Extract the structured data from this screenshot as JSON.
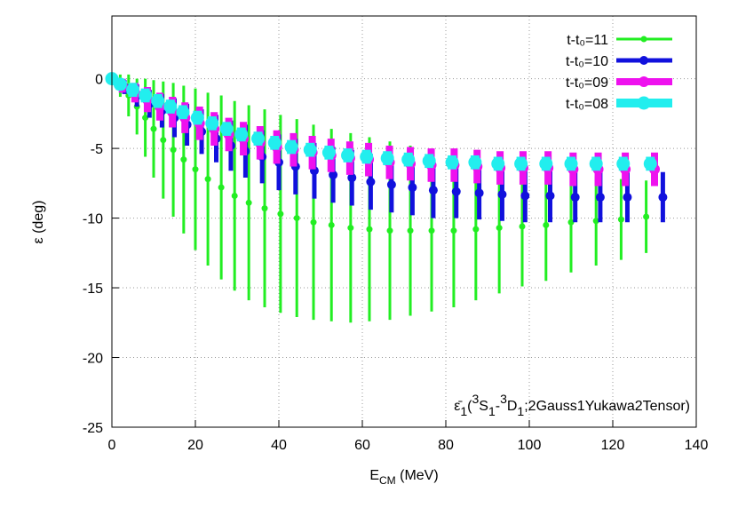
{
  "chart_data": {
    "type": "errorbar",
    "x_label": {
      "main": "E",
      "sub": "CM",
      "rest": " (MeV)"
    },
    "y_label": "ε (deg)",
    "annotation": [
      {
        "text": "ε̄",
        "shift": "none"
      },
      {
        "text": "1",
        "shift": "sub"
      },
      {
        "text": "(",
        "shift": "none"
      },
      {
        "text": "3",
        "shift": "sup"
      },
      {
        "text": "S",
        "shift": "none"
      },
      {
        "text": "1",
        "shift": "sub"
      },
      {
        "text": "-",
        "shift": "none"
      },
      {
        "text": "3",
        "shift": "sup"
      },
      {
        "text": "D",
        "shift": "none"
      },
      {
        "text": "1",
        "shift": "sub"
      },
      {
        "text": ";2Gauss1Yukawa2Tensor)",
        "shift": "none"
      }
    ],
    "xlim": [
      0,
      140
    ],
    "xticks": [
      0,
      20,
      40,
      60,
      80,
      100,
      120,
      140
    ],
    "ylim": [
      -25,
      4.5
    ],
    "yticks": [
      0,
      -5,
      -10,
      -15,
      -20,
      -25
    ],
    "grid": true,
    "legend": "top-right",
    "series": [
      {
        "name": "t-t₀=11",
        "color": "#22ee22",
        "line_width": 3,
        "marker_size": 3.5,
        "x": [
          0,
          2,
          4,
          6,
          8,
          10,
          12.3,
          14.7,
          17.2,
          20,
          23,
          26.2,
          29.4,
          32.8,
          36.6,
          40.4,
          44.3,
          48.3,
          52.6,
          57.2,
          61.7,
          66.6,
          71.5,
          76.6,
          81.9,
          87.2,
          92.8,
          98.3,
          104,
          110,
          116,
          122,
          128
        ],
        "values": [
          0,
          -0.5,
          -1.2,
          -2,
          -2.8,
          -3.6,
          -4.4,
          -5.1,
          -5.8,
          -6.5,
          -7.2,
          -7.8,
          -8.4,
          -8.9,
          -9.3,
          -9.7,
          -10,
          -10.3,
          -10.5,
          -10.7,
          -10.8,
          -10.9,
          -10.9,
          -10.9,
          -10.9,
          -10.8,
          -10.7,
          -10.6,
          -10.5,
          -10.3,
          -10.2,
          -10.1,
          -9.9
        ],
        "errors": [
          0,
          0.8,
          1.5,
          2,
          2.8,
          3.5,
          4.2,
          4.8,
          5.3,
          5.8,
          6.2,
          6.6,
          6.8,
          7,
          7.1,
          7.1,
          7.1,
          7,
          6.9,
          6.8,
          6.6,
          6.4,
          6.1,
          5.8,
          5.5,
          5.1,
          4.7,
          4.3,
          4,
          3.6,
          3.2,
          2.9,
          2.6
        ]
      },
      {
        "name": "t-t₀=10",
        "color": "#1111dd",
        "line_width": 5,
        "marker_size": 5,
        "x": [
          0,
          3,
          6,
          9,
          12,
          15,
          18,
          21.5,
          25,
          28.5,
          32,
          36,
          40,
          44,
          48.5,
          53,
          57.5,
          62,
          67,
          72,
          77,
          82.5,
          88,
          93.5,
          99,
          105,
          111,
          117,
          123.5,
          132
        ],
        "values": [
          0,
          -0.6,
          -1.2,
          -1.8,
          -2.3,
          -2.8,
          -3.3,
          -3.8,
          -4.3,
          -4.8,
          -5.2,
          -5.6,
          -6,
          -6.3,
          -6.6,
          -6.9,
          -7.1,
          -7.4,
          -7.6,
          -7.8,
          -8,
          -8.1,
          -8.2,
          -8.3,
          -8.4,
          -8.4,
          -8.5,
          -8.5,
          -8.5,
          -8.5
        ],
        "errors": [
          0,
          0.5,
          0.8,
          1,
          1.2,
          1.4,
          1.5,
          1.6,
          1.7,
          1.8,
          1.9,
          1.9,
          2,
          2,
          2,
          2,
          2,
          2,
          2,
          2,
          2,
          1.9,
          1.9,
          1.9,
          1.9,
          1.9,
          1.8,
          1.8,
          1.8,
          1.8
        ]
      },
      {
        "name": "t-t₀=09",
        "color": "#ee11ee",
        "line_width": 8,
        "marker_size": 6,
        "x": [
          0,
          2.5,
          5.5,
          8.5,
          11.5,
          14.5,
          17.5,
          21,
          24.5,
          28,
          31.5,
          35.5,
          39.5,
          43.5,
          48,
          52.5,
          57,
          61.5,
          66.5,
          71.5,
          76.5,
          82,
          87.5,
          93,
          98.5,
          104.5,
          110.5,
          116.5,
          123,
          130
        ],
        "values": [
          0,
          -0.5,
          -1,
          -1.5,
          -2,
          -2.4,
          -2.8,
          -3.2,
          -3.6,
          -4,
          -4.3,
          -4.6,
          -4.9,
          -5.1,
          -5.3,
          -5.5,
          -5.7,
          -5.8,
          -6,
          -6.1,
          -6.2,
          -6.2,
          -6.3,
          -6.4,
          -6.4,
          -6.4,
          -6.5,
          -6.5,
          -6.5,
          -6.5
        ],
        "errors": [
          0,
          0.5,
          0.7,
          0.9,
          1,
          1.1,
          1.1,
          1.2,
          1.2,
          1.2,
          1.2,
          1.2,
          1.2,
          1.2,
          1.2,
          1.2,
          1.2,
          1.2,
          1.2,
          1.2,
          1.2,
          1.2,
          1.2,
          1.2,
          1.2,
          1.2,
          1.2,
          1.2,
          1.2,
          1.2
        ]
      },
      {
        "name": "t-t₀=08",
        "color": "#22eeee",
        "line_width": 10,
        "marker_size": 7.5,
        "x": [
          0,
          2,
          5,
          8,
          11,
          14,
          17,
          20.5,
          24,
          27.5,
          31,
          35,
          39,
          43,
          47.5,
          52,
          56.5,
          61,
          66,
          71,
          76,
          81.5,
          87,
          92.5,
          98,
          104,
          110,
          116,
          122.5,
          129
        ],
        "values": [
          0,
          -0.4,
          -0.8,
          -1.2,
          -1.6,
          -2,
          -2.4,
          -2.8,
          -3.2,
          -3.6,
          -4,
          -4.3,
          -4.6,
          -4.9,
          -5.1,
          -5.3,
          -5.5,
          -5.6,
          -5.7,
          -5.8,
          -5.9,
          -6,
          -6,
          -6.1,
          -6.1,
          -6.1,
          -6.1,
          -6.1,
          -6.1,
          -6.1
        ],
        "errors": [
          0,
          0.4,
          0.5,
          0.5,
          0.5,
          0.5,
          0.5,
          0.5,
          0.5,
          0.5,
          0.5,
          0.5,
          0.5,
          0.5,
          0.5,
          0.5,
          0.5,
          0.5,
          0.5,
          0.5,
          0.5,
          0.5,
          0.5,
          0.5,
          0.5,
          0.5,
          0.5,
          0.5,
          0.5,
          0.5
        ]
      }
    ]
  }
}
